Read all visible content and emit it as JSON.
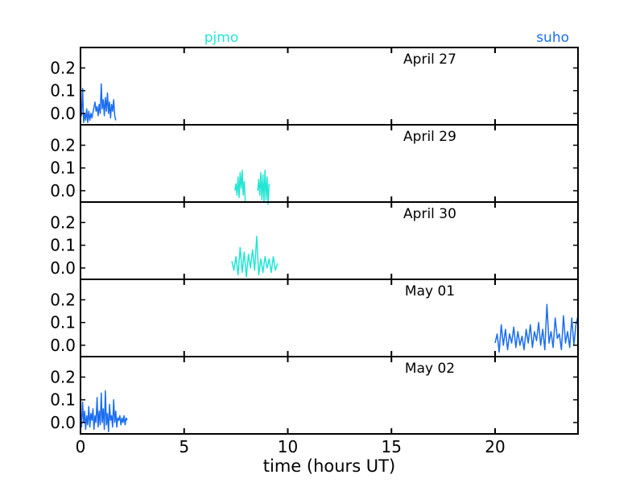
{
  "chart_data": {
    "type": "line",
    "xlabel": "time (hours UT)",
    "xlim": [
      0,
      24
    ],
    "ylim": [
      -0.05,
      0.29
    ],
    "x_ticks": [
      0,
      5,
      10,
      15,
      20
    ],
    "y_ticks": [
      0.2,
      0.1,
      0.0
    ],
    "station_labels": [
      {
        "name": "pjmo",
        "color": "#22e6d4"
      },
      {
        "name": "suho",
        "color": "#1a6df0"
      }
    ],
    "panels": [
      {
        "label": "April 27",
        "series": [
          {
            "station": "suho",
            "color": "#1a6df0",
            "x": [
              0.0,
              0.05,
              0.1,
              0.15,
              0.2,
              0.25,
              0.3,
              0.35,
              0.4,
              0.45,
              0.5,
              0.55,
              0.7,
              0.75,
              0.8,
              0.85,
              0.9,
              0.95,
              1.0,
              1.05,
              1.1,
              1.15,
              1.2,
              1.25,
              1.3,
              1.35,
              1.4,
              1.45,
              1.5,
              1.55,
              1.6,
              1.65,
              1.7
            ],
            "y": [
              0.06,
              -0.01,
              0.11,
              -0.04,
              0.0,
              -0.03,
              0.02,
              -0.04,
              0.01,
              -0.03,
              0.0,
              -0.02,
              0.05,
              0.01,
              0.03,
              -0.01,
              0.04,
              0.0,
              0.13,
              0.02,
              0.06,
              -0.01,
              0.07,
              0.01,
              0.09,
              0.0,
              0.05,
              -0.02,
              0.04,
              0.01,
              0.06,
              -0.01,
              -0.03
            ]
          }
        ]
      },
      {
        "label": "April 29",
        "series": [
          {
            "station": "pjmo",
            "color": "#22e6d4",
            "x": [
              7.45,
              7.5,
              7.55,
              7.6,
              7.65,
              7.7,
              7.75,
              7.8,
              7.85,
              7.9,
              7.95
            ],
            "y": [
              0.0,
              0.03,
              -0.02,
              0.06,
              -0.03,
              0.08,
              0.01,
              0.09,
              -0.02,
              0.04,
              -0.05
            ]
          },
          {
            "station": "pjmo",
            "color": "#22e6d4",
            "x": [
              8.55,
              8.6,
              8.65,
              8.7,
              8.75,
              8.8,
              8.85,
              8.9,
              8.95,
              9.0,
              9.05,
              9.1
            ],
            "y": [
              0.0,
              0.05,
              -0.02,
              0.08,
              -0.04,
              0.07,
              -0.05,
              0.09,
              -0.04,
              0.06,
              -0.06,
              0.03
            ]
          }
        ]
      },
      {
        "label": "April 30",
        "series": [
          {
            "station": "pjmo",
            "color": "#22e6d4",
            "x": [
              7.3,
              7.4,
              7.5,
              7.6,
              7.7,
              7.8,
              7.9,
              8.0,
              8.1,
              8.2,
              8.3,
              8.4,
              8.5,
              8.6,
              8.7,
              8.8,
              8.9,
              9.0,
              9.1,
              9.2,
              9.3,
              9.4,
              9.5
            ],
            "y": [
              0.03,
              -0.01,
              0.05,
              -0.03,
              0.09,
              -0.02,
              0.07,
              -0.04,
              0.06,
              0.0,
              0.08,
              -0.01,
              0.14,
              -0.03,
              0.04,
              -0.02,
              0.05,
              0.0,
              0.04,
              -0.02,
              0.05,
              -0.01,
              0.02
            ]
          }
        ]
      },
      {
        "label": "May 01",
        "series": [
          {
            "station": "suho",
            "color": "#1a6df0",
            "x": [
              20.0,
              20.1,
              20.2,
              20.3,
              20.4,
              20.5,
              20.6,
              20.7,
              20.8,
              20.9,
              21.0,
              21.1,
              21.2,
              21.3,
              21.4,
              21.5,
              21.6,
              21.7,
              21.8,
              21.9,
              22.0,
              22.1,
              22.2,
              22.3,
              22.4,
              22.5,
              22.6,
              22.7,
              22.8,
              22.9,
              23.0,
              23.1,
              23.2,
              23.3,
              23.4,
              23.5,
              23.6,
              23.7,
              23.8,
              23.9,
              24.0
            ],
            "y": [
              0.01,
              0.05,
              -0.03,
              0.09,
              0.0,
              0.07,
              -0.02,
              0.05,
              0.01,
              0.08,
              -0.01,
              0.06,
              0.0,
              0.04,
              -0.02,
              0.07,
              0.01,
              0.09,
              -0.01,
              0.06,
              0.02,
              0.1,
              0.0,
              0.07,
              -0.02,
              0.18,
              0.01,
              0.06,
              -0.01,
              0.12,
              0.03,
              0.05,
              -0.02,
              0.13,
              0.01,
              0.06,
              -0.01,
              0.12,
              0.0,
              0.09,
              0.13
            ]
          }
        ]
      },
      {
        "label": "May 02",
        "series": [
          {
            "station": "suho",
            "color": "#1a6df0",
            "x": [
              0.0,
              0.05,
              0.1,
              0.15,
              0.2,
              0.25,
              0.3,
              0.35,
              0.4,
              0.45,
              0.5,
              0.55,
              0.6,
              0.65,
              0.7,
              0.75,
              0.8,
              0.85,
              0.9,
              0.95,
              1.0,
              1.05,
              1.1,
              1.15,
              1.2,
              1.25,
              1.3,
              1.35,
              1.4,
              1.45,
              1.5,
              1.55,
              1.6,
              1.65,
              1.7,
              1.75,
              1.8,
              1.85,
              1.9,
              1.95,
              2.0,
              2.05,
              2.1,
              2.15,
              2.2,
              2.25
            ],
            "y": [
              0.06,
              -0.02,
              0.09,
              0.0,
              0.05,
              -0.03,
              0.03,
              -0.01,
              0.07,
              -0.02,
              0.04,
              0.01,
              0.06,
              -0.03,
              0.03,
              0.0,
              0.11,
              -0.02,
              0.05,
              -0.01,
              0.13,
              0.0,
              0.06,
              -0.03,
              0.14,
              -0.01,
              0.04,
              -0.04,
              0.08,
              0.01,
              0.03,
              -0.02,
              0.1,
              0.0,
              0.05,
              -0.02,
              0.02,
              0.01,
              0.03,
              -0.01,
              0.02,
              0.0,
              0.03,
              -0.01,
              0.02,
              0.01
            ]
          }
        ]
      }
    ]
  }
}
